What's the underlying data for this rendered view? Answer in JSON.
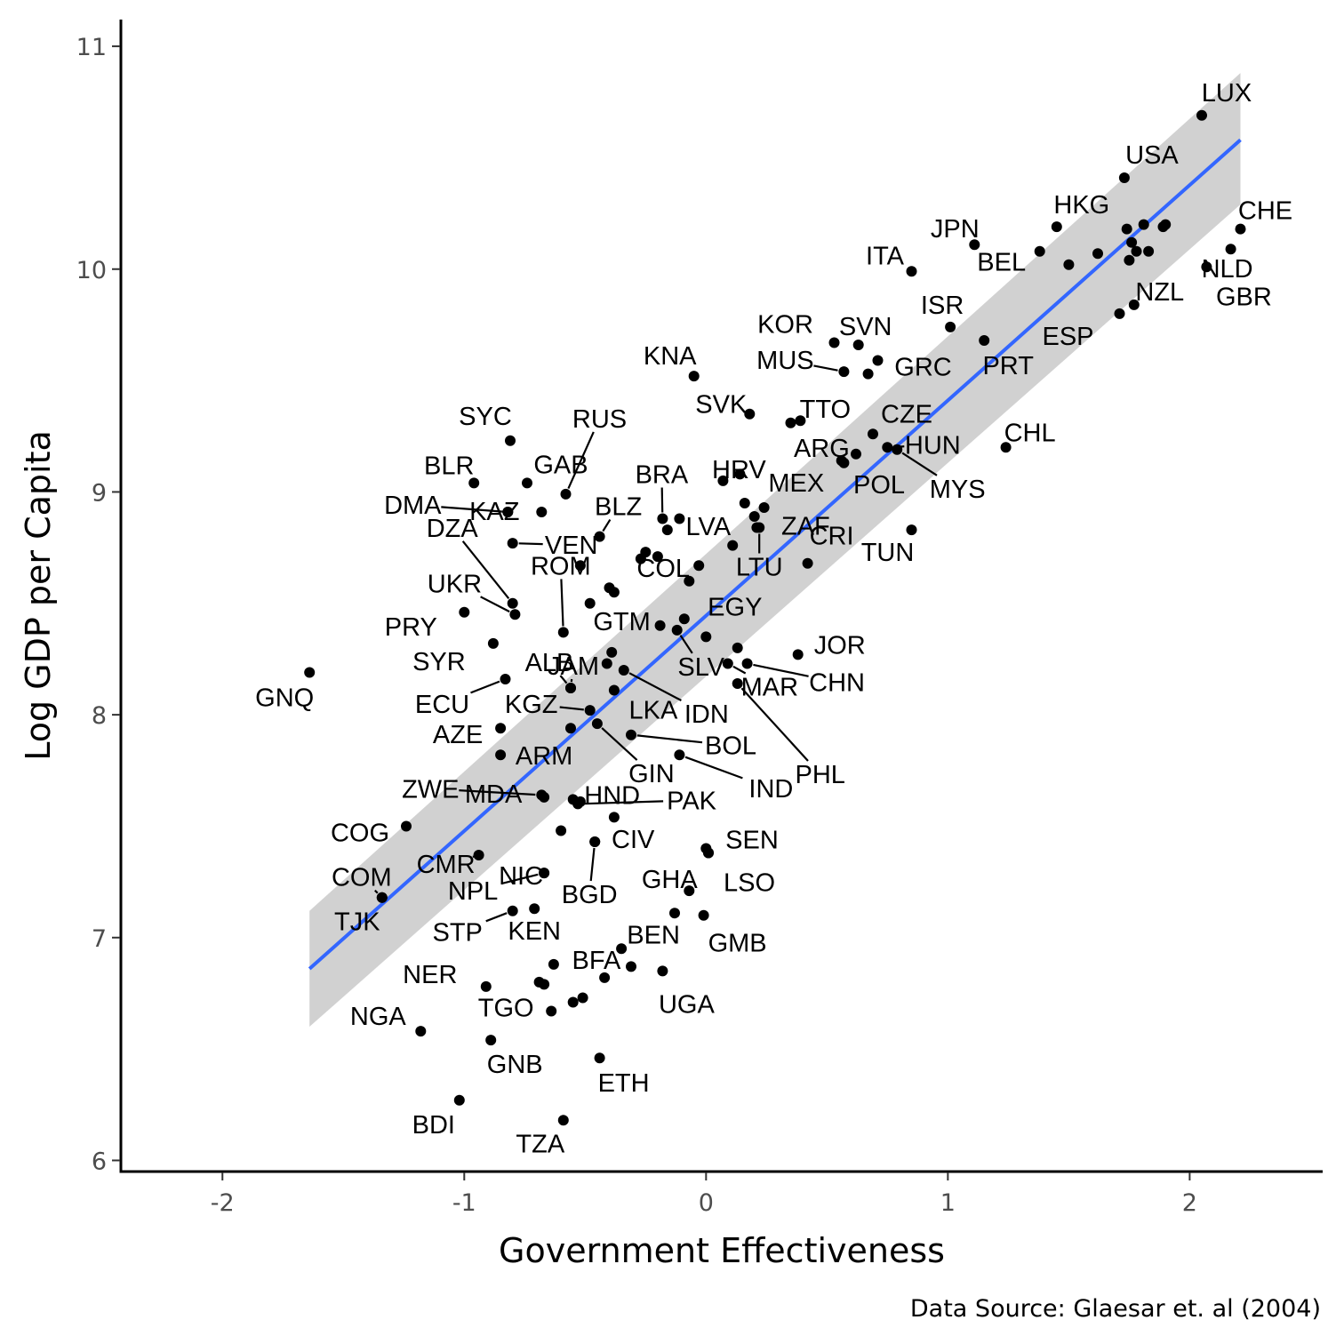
{
  "chart_data": {
    "type": "scatter",
    "title": "",
    "xlabel": "Government Effectiveness",
    "ylabel": "Log GDP per Capita",
    "caption": "Data Source: Glaesar et. al (2004)",
    "xlim": [
      -2.42,
      2.55
    ],
    "ylim": [
      5.95,
      11.12
    ],
    "x_ticks": [
      -2,
      -1,
      0,
      1,
      2
    ],
    "x_tick_labels": [
      "-2",
      "-1",
      "0",
      "1",
      "2"
    ],
    "y_ticks": [
      6,
      7,
      8,
      9,
      10,
      11
    ],
    "y_tick_labels": [
      "6",
      "7",
      "8",
      "9",
      "10",
      "11"
    ],
    "grid": false,
    "regression": {
      "method": "linear",
      "color": "#3366ff",
      "band_color": "#999999",
      "x_range": [
        -1.64,
        2.21
      ],
      "line_y": [
        6.86,
        10.58
      ],
      "ci_lower": [
        6.6,
        10.29
      ],
      "ci_upper": [
        7.12,
        10.88
      ]
    },
    "points": [
      {
        "x": 2.05,
        "y": 10.69,
        "label": "LUX"
      },
      {
        "x": 1.73,
        "y": 10.41,
        "label": "USA"
      },
      {
        "x": 1.45,
        "y": 10.19,
        "label": "HKG"
      },
      {
        "x": 2.21,
        "y": 10.18,
        "label": "CHE"
      },
      {
        "x": 2.17,
        "y": 10.09,
        "label": "NLD"
      },
      {
        "x": 1.11,
        "y": 10.11,
        "label": "JPN"
      },
      {
        "x": 0.85,
        "y": 9.99,
        "label": "ITA"
      },
      {
        "x": 1.38,
        "y": 10.08,
        "label": "BEL"
      },
      {
        "x": 1.77,
        "y": 9.84,
        "label": "NZL"
      },
      {
        "x": 2.07,
        "y": 10.01,
        "label": "GBR"
      },
      {
        "x": 1.01,
        "y": 9.74,
        "label": "ISR"
      },
      {
        "x": 1.71,
        "y": 9.8,
        "label": "ESP"
      },
      {
        "x": 0.53,
        "y": 9.67,
        "label": "KOR"
      },
      {
        "x": 0.63,
        "y": 9.66,
        "label": "SVN"
      },
      {
        "x": 0.57,
        "y": 9.54,
        "label": "MUS"
      },
      {
        "x": 0.71,
        "y": 9.59,
        "label": "GRC"
      },
      {
        "x": 1.15,
        "y": 9.68,
        "label": "PRT"
      },
      {
        "x": -0.05,
        "y": 9.52,
        "label": "KNA"
      },
      {
        "x": 0.18,
        "y": 9.35,
        "label": "SVK"
      },
      {
        "x": 0.39,
        "y": 9.32,
        "label": "TTO"
      },
      {
        "x": 0.69,
        "y": 9.26,
        "label": "CZE"
      },
      {
        "x": 1.24,
        "y": 9.2,
        "label": "CHL"
      },
      {
        "x": 0.07,
        "y": 9.05,
        "label": "HRV"
      },
      {
        "x": 0.57,
        "y": 9.13,
        "label": "ARG"
      },
      {
        "x": 0.75,
        "y": 9.2,
        "label": "HUN"
      },
      {
        "x": 0.62,
        "y": 9.17,
        "label": "POL"
      },
      {
        "x": 0.79,
        "y": 9.19,
        "label": "MYS"
      },
      {
        "x": -0.81,
        "y": 9.23,
        "label": "SYC"
      },
      {
        "x": -0.58,
        "y": 8.99,
        "label": "RUS"
      },
      {
        "x": -0.96,
        "y": 9.04,
        "label": "BLR"
      },
      {
        "x": -0.74,
        "y": 9.04,
        "label": "GAB"
      },
      {
        "x": -0.18,
        "y": 8.88,
        "label": "BRA"
      },
      {
        "x": 0.16,
        "y": 8.95,
        "label": "MEX"
      },
      {
        "x": -0.82,
        "y": 8.91,
        "label": "KAZ"
      },
      {
        "x": -0.82,
        "y": 8.91,
        "label": "DMA"
      },
      {
        "x": -0.44,
        "y": 8.8,
        "label": "BLZ"
      },
      {
        "x": -0.16,
        "y": 8.83,
        "label": "LVA"
      },
      {
        "x": 0.21,
        "y": 8.84,
        "label": "ZAF"
      },
      {
        "x": 0.22,
        "y": 8.84,
        "label": "LTU"
      },
      {
        "x": -0.8,
        "y": 8.77,
        "label": "VEN"
      },
      {
        "x": 0.85,
        "y": 8.83,
        "label": "TUN"
      },
      {
        "x": -0.8,
        "y": 8.5,
        "label": "DZA"
      },
      {
        "x": -0.03,
        "y": 8.67,
        "label": "COL"
      },
      {
        "x": -0.79,
        "y": 8.45,
        "label": "UKR"
      },
      {
        "x": -0.59,
        "y": 8.37,
        "label": "ROM"
      },
      {
        "x": 0.42,
        "y": 8.68,
        "label": "CRI"
      },
      {
        "x": -1.0,
        "y": 8.46,
        "label": "PRY"
      },
      {
        "x": -0.19,
        "y": 8.4,
        "label": "GTM"
      },
      {
        "x": -0.09,
        "y": 8.43,
        "label": "EGY"
      },
      {
        "x": 0.38,
        "y": 8.27,
        "label": "JOR"
      },
      {
        "x": -0.12,
        "y": 8.38,
        "label": "SLV"
      },
      {
        "x": -0.88,
        "y": 8.32,
        "label": "SYR"
      },
      {
        "x": -0.56,
        "y": 8.12,
        "label": "ALB"
      },
      {
        "x": -0.56,
        "y": 8.12,
        "label": "JAM"
      },
      {
        "x": -0.34,
        "y": 8.2,
        "label": "IDN"
      },
      {
        "x": 0.17,
        "y": 8.23,
        "label": "CHN"
      },
      {
        "x": -0.83,
        "y": 8.16,
        "label": "ECU"
      },
      {
        "x": 0.09,
        "y": 8.23,
        "label": "MAR"
      },
      {
        "x": -0.48,
        "y": 8.02,
        "label": "KGZ"
      },
      {
        "x": -0.38,
        "y": 8.11,
        "label": "LKA"
      },
      {
        "x": 0.13,
        "y": 8.14,
        "label": "PHL"
      },
      {
        "x": -0.31,
        "y": 7.91,
        "label": "BOL"
      },
      {
        "x": -0.45,
        "y": 7.96,
        "label": "GIN"
      },
      {
        "x": -0.85,
        "y": 7.82,
        "label": "ARM"
      },
      {
        "x": -0.85,
        "y": 7.94,
        "label": "AZE"
      },
      {
        "x": -0.11,
        "y": 7.82,
        "label": "IND"
      },
      {
        "x": -0.68,
        "y": 7.64,
        "label": "ZWE"
      },
      {
        "x": -0.55,
        "y": 7.62,
        "label": "HND"
      },
      {
        "x": -0.53,
        "y": 7.6,
        "label": "PAK"
      },
      {
        "x": -0.67,
        "y": 7.63,
        "label": "MDA"
      },
      {
        "x": -1.24,
        "y": 7.5,
        "label": "COG"
      },
      {
        "x": -0.94,
        "y": 7.37,
        "label": "CMR"
      },
      {
        "x": -0.46,
        "y": 7.43,
        "label": "CIV"
      },
      {
        "x": 0.01,
        "y": 7.38,
        "label": "SEN"
      },
      {
        "x": -0.67,
        "y": 7.29,
        "label": "NIC"
      },
      {
        "x": -0.46,
        "y": 7.43,
        "label": "BGD"
      },
      {
        "x": 0.01,
        "y": 7.38,
        "label": "LSO"
      },
      {
        "x": -0.07,
        "y": 7.21,
        "label": "GHA"
      },
      {
        "x": -1.34,
        "y": 7.18,
        "label": "COM"
      },
      {
        "x": -0.67,
        "y": 7.29,
        "label": "NPL"
      },
      {
        "x": -1.34,
        "y": 7.18,
        "label": "TJK"
      },
      {
        "x": -0.8,
        "y": 7.12,
        "label": "STP"
      },
      {
        "x": -0.71,
        "y": 7.13,
        "label": "KEN"
      },
      {
        "x": -0.35,
        "y": 6.95,
        "label": "BEN"
      },
      {
        "x": -0.01,
        "y": 7.1,
        "label": "GMB"
      },
      {
        "x": -0.91,
        "y": 6.78,
        "label": "NER"
      },
      {
        "x": -0.63,
        "y": 6.88,
        "label": "BFA"
      },
      {
        "x": -0.18,
        "y": 6.85,
        "label": "UGA"
      },
      {
        "x": -0.64,
        "y": 6.67,
        "label": "TGO"
      },
      {
        "x": -1.18,
        "y": 6.58,
        "label": "NGA"
      },
      {
        "x": -0.89,
        "y": 6.54,
        "label": "GNB"
      },
      {
        "x": -0.44,
        "y": 6.46,
        "label": "ETH"
      },
      {
        "x": -1.02,
        "y": 6.27,
        "label": "BDI"
      },
      {
        "x": -0.59,
        "y": 6.18,
        "label": "TZA"
      },
      {
        "x": -1.64,
        "y": 8.19,
        "label": "GNQ"
      },
      {
        "x": -0.69,
        "y": 6.8,
        "label": ""
      },
      {
        "x": -0.67,
        "y": 6.79,
        "label": ""
      },
      {
        "x": -0.42,
        "y": 6.82,
        "label": ""
      },
      {
        "x": -0.31,
        "y": 6.87,
        "label": ""
      },
      {
        "x": -0.55,
        "y": 6.71,
        "label": ""
      },
      {
        "x": -0.51,
        "y": 6.73,
        "label": ""
      },
      {
        "x": -0.6,
        "y": 7.48,
        "label": ""
      },
      {
        "x": -0.38,
        "y": 7.54,
        "label": ""
      },
      {
        "x": -0.13,
        "y": 7.11,
        "label": ""
      },
      {
        "x": 0.0,
        "y": 7.4,
        "label": ""
      },
      {
        "x": -0.52,
        "y": 7.61,
        "label": ""
      },
      {
        "x": -0.56,
        "y": 7.94,
        "label": ""
      },
      {
        "x": -0.39,
        "y": 8.28,
        "label": ""
      },
      {
        "x": -0.41,
        "y": 8.23,
        "label": ""
      },
      {
        "x": 0.0,
        "y": 8.35,
        "label": ""
      },
      {
        "x": 0.13,
        "y": 8.3,
        "label": ""
      },
      {
        "x": -0.07,
        "y": 8.6,
        "label": ""
      },
      {
        "x": -0.48,
        "y": 8.5,
        "label": ""
      },
      {
        "x": -0.4,
        "y": 8.57,
        "label": ""
      },
      {
        "x": -0.38,
        "y": 8.55,
        "label": ""
      },
      {
        "x": -0.52,
        "y": 8.67,
        "label": ""
      },
      {
        "x": -0.27,
        "y": 8.7,
        "label": ""
      },
      {
        "x": -0.25,
        "y": 8.73,
        "label": ""
      },
      {
        "x": -0.2,
        "y": 8.71,
        "label": ""
      },
      {
        "x": -0.11,
        "y": 8.88,
        "label": ""
      },
      {
        "x": 0.11,
        "y": 8.76,
        "label": ""
      },
      {
        "x": 0.2,
        "y": 8.89,
        "label": ""
      },
      {
        "x": 0.24,
        "y": 8.93,
        "label": ""
      },
      {
        "x": 0.14,
        "y": 9.08,
        "label": ""
      },
      {
        "x": -0.68,
        "y": 8.91,
        "label": ""
      },
      {
        "x": 0.35,
        "y": 9.31,
        "label": ""
      },
      {
        "x": 0.67,
        "y": 9.53,
        "label": ""
      },
      {
        "x": 0.56,
        "y": 9.14,
        "label": ""
      },
      {
        "x": 1.5,
        "y": 10.02,
        "label": ""
      },
      {
        "x": 1.62,
        "y": 10.07,
        "label": ""
      },
      {
        "x": 1.75,
        "y": 10.04,
        "label": ""
      },
      {
        "x": 1.76,
        "y": 10.12,
        "label": ""
      },
      {
        "x": 1.78,
        "y": 10.08,
        "label": ""
      },
      {
        "x": 1.74,
        "y": 10.18,
        "label": ""
      },
      {
        "x": 1.81,
        "y": 10.2,
        "label": ""
      },
      {
        "x": 1.83,
        "y": 10.08,
        "label": ""
      },
      {
        "x": 1.89,
        "y": 10.19,
        "label": ""
      },
      {
        "x": 1.9,
        "y": 10.2,
        "label": ""
      }
    ]
  }
}
